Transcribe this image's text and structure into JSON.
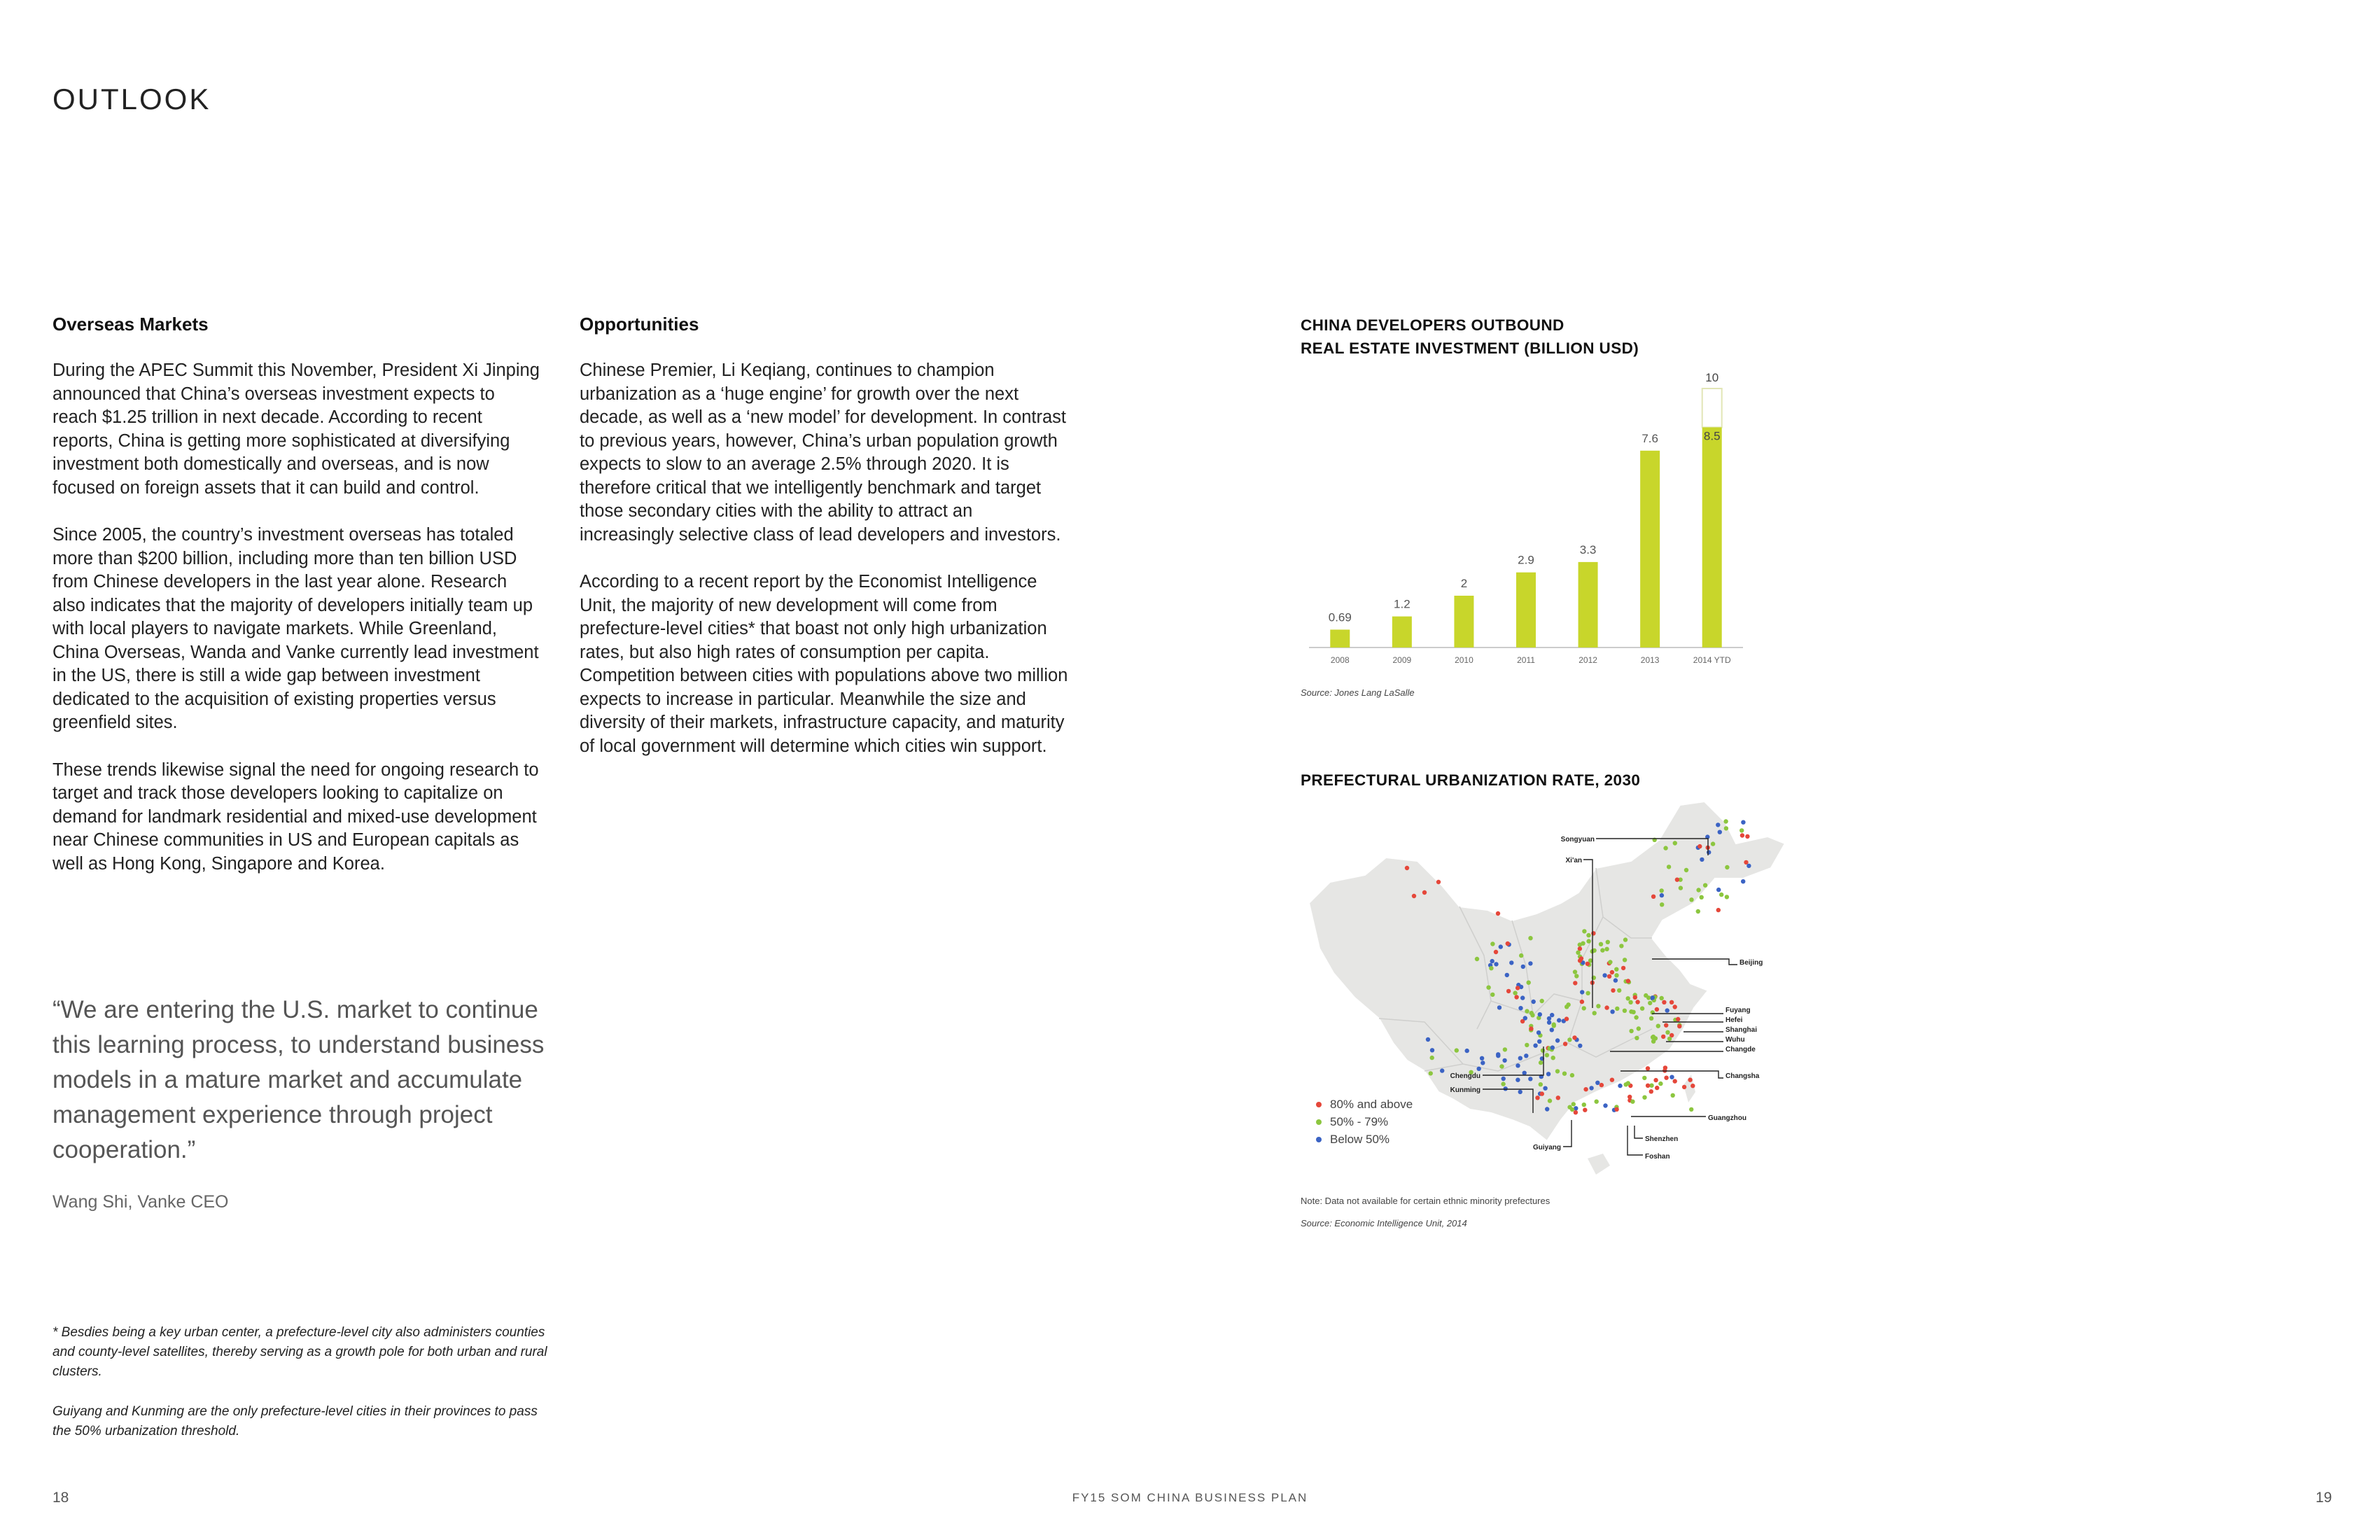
{
  "header": {
    "title": "OUTLOOK"
  },
  "left_column": {
    "heading": "Overseas Markets",
    "paragraphs": [
      "During the APEC Summit this November, President Xi Jinping announced that China’s overseas investment expects to reach $1.25 trillion in next decade. According to recent reports, China is getting more sophisticated at diversifying investment both domestically and overseas, and is now focused on foreign assets that it can build and control.",
      "Since 2005, the country’s investment overseas has totaled more than $200 billion, including more than ten billion USD from Chinese developers in the last year alone. Research also indicates that the majority of developers initially team up with local players to navigate markets. While Greenland, China Overseas, Wanda and Vanke currently lead investment in the US, there is still a wide gap between investment dedicated to the acquisition of existing properties versus greenfield sites.",
      "These trends likewise signal the need for ongoing research to target and track those developers looking to capitalize on demand for landmark residential and mixed-use development near Chinese communities in US and European capitals as well as Hong Kong, Singapore and Korea."
    ]
  },
  "middle_column": {
    "heading": "Opportunities",
    "paragraphs": [
      "Chinese Premier, Li Keqiang, continues to champion urbanization as a ‘huge engine’ for growth over the next decade, as well as a ‘new model’ for development. In contrast to previous years, however, China’s urban population growth expects to slow to an average 2.5% through 2020. It is therefore critical that we intelligently benchmark and target those secondary cities with the ability to attract an increasingly selective class of lead developers and investors.",
      "According to a recent report by the Economist Intelligence Unit, the majority of new development will come from prefecture-level cities* that boast not only high urbanization rates, but also high rates of consumption per capita. Competition between cities with populations above two million expects to increase in particular. Meanwhile the size and diversity of their markets, infrastructure capacity, and maturity of local government will determine which cities win support."
    ]
  },
  "quote": {
    "text": "“We are entering the U.S. market to continue this learning process, to understand business models in a mature market and accumulate management experience through project cooperation.”",
    "author": "Wang Shi, Vanke CEO"
  },
  "footnotes": [
    "* Besdies being a key urban center, a prefecture-level city also administers counties and county-level satellites, thereby serving as a growth pole for both urban and rural clusters.",
    "Guiyang and Kunming are the only prefecture-level cities in their provinces to pass the 50% urbanization threshold."
  ],
  "footer": {
    "left_page": "18",
    "center": "FY15 SOM CHINA BUSINESS PLAN",
    "right_page": "19"
  },
  "chart_data": {
    "type": "bar",
    "title_line1": "CHINA DEVELOPERS OUTBOUND",
    "title_line2": "REAL ESTATE INVESTMENT (BILLION USD)",
    "categories": [
      "2008",
      "2009",
      "2010",
      "2011",
      "2012",
      "2013",
      "2014 YTD"
    ],
    "values": [
      0.69,
      1.2,
      2,
      2.9,
      3.3,
      7.6,
      8.5
    ],
    "value_labels": [
      "0.69",
      "1.2",
      "2",
      "2.9",
      "3.3",
      "7.6",
      "8.5"
    ],
    "projected_total": {
      "category": "2014 YTD",
      "value": 10,
      "label": "10"
    },
    "ylim": [
      0,
      10
    ],
    "grid": false,
    "bar_color": "#c8d62b",
    "source": "Source: Jones Lang LaSalle"
  },
  "map": {
    "title": "PREFECTURAL URBANIZATION RATE, 2030",
    "legend": [
      {
        "label": "80% and above",
        "color": "#e5473a"
      },
      {
        "label": "50% - 79%",
        "color": "#8cc63f"
      },
      {
        "label": "Below 50%",
        "color": "#3b63c4"
      }
    ],
    "cities": [
      "Songyuan",
      "Xi'an",
      "Beijing",
      "Fuyang",
      "Hefei",
      "Shanghai",
      "Wuhu",
      "Changde",
      "Changsha",
      "Chengdu",
      "Kunming",
      "Guangzhou",
      "Shenzhen",
      "Foshan",
      "Guiyang"
    ],
    "note": "Note: Data not available for certain ethnic minority prefectures",
    "source": "Source: Economic Intelligence Unit, 2014"
  }
}
